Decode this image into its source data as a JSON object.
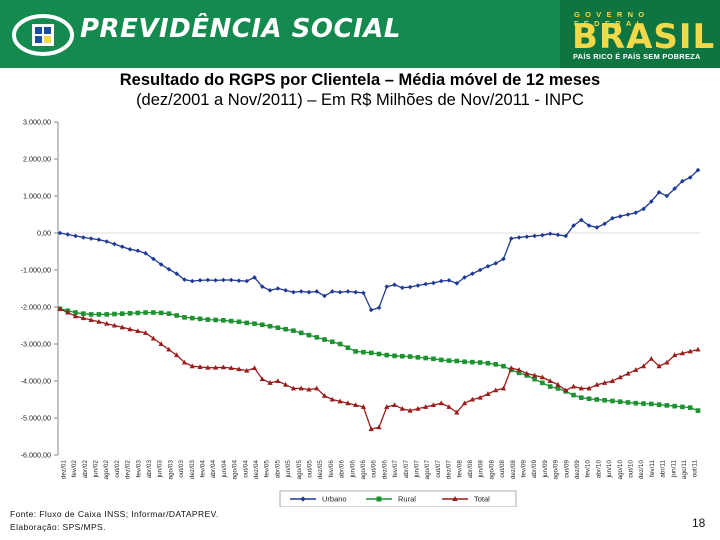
{
  "header": {
    "brand": "PREVIDÊNCIA SOCIAL",
    "gov_top": "GOVERNO FEDERAL",
    "gov_brasil": "BRASIL",
    "gov_slogan": "PAÍS RICO É PAÍS SEM POBREZA",
    "colors": {
      "header_green": "#148a4e",
      "gold": "#f3d94a"
    }
  },
  "title_line1": "Resultado do RGPS por Clientela – Média móvel de 12 meses",
  "title_line2": "(dez/2001 a Nov/2011) – Em R$ Milhões de Nov/2011 - INPC",
  "source_line1": "Fonte: Fluxo de Caixa INSS; Informar/DATAPREV.",
  "source_line2": "Elaboração: SPS/MPS.",
  "page_number": "18",
  "chart_data": {
    "type": "line",
    "title": "Resultado do RGPS por Clientela – Média móvel de 12 meses",
    "xlabel": "",
    "ylabel": "",
    "ylim": [
      -6000,
      3000
    ],
    "yticks": [
      3000,
      2000,
      1000,
      0,
      -1000,
      -2000,
      -3000,
      -4000,
      -5000,
      -6000
    ],
    "ytick_labels": [
      "3.000,00",
      "2.000,00",
      "1.000,00",
      "0,00",
      "-1.000,00",
      "-2.000,00",
      "-3.000,00",
      "-4.000,00",
      "-5.000,00",
      "-6.000,00"
    ],
    "grid": false,
    "legend_position": "bottom",
    "x_tick_labels": [
      "dez/01",
      "fev/02",
      "abr/02",
      "jun/02",
      "ago/02",
      "out/02",
      "dez/02",
      "fev/03",
      "abr/03",
      "jun/03",
      "ago/03",
      "out/03",
      "dez/03",
      "fev/04",
      "abr/04",
      "jun/04",
      "ago/04",
      "out/04",
      "dez/04",
      "fev/05",
      "abr/05",
      "jun/05",
      "ago/05",
      "out/05",
      "dez/05",
      "fev/06",
      "abr/06",
      "jun/06",
      "ago/06",
      "out/06",
      "dez/06",
      "fev/07",
      "abr/07",
      "jun/07",
      "ago/07",
      "out/07",
      "dez/07",
      "fev/08",
      "abr/08",
      "jun/08",
      "ago/08",
      "out/08",
      "dez/08",
      "fev/09",
      "abr/09",
      "jun/09",
      "ago/09",
      "out/09",
      "dez/09",
      "fev/10",
      "abr/10",
      "jun/10",
      "ago/10",
      "out/10",
      "dez/10",
      "fev/11",
      "abr/11",
      "jun/11",
      "ago/11",
      "out/11"
    ],
    "series": [
      {
        "name": "Urbano",
        "color": "#1f3a93",
        "marker": "diamond",
        "values": [
          0,
          -40,
          -80,
          -120,
          -150,
          -180,
          -230,
          -300,
          -370,
          -440,
          -480,
          -550,
          -700,
          -850,
          -980,
          -1100,
          -1260,
          -1300,
          -1280,
          -1270,
          -1280,
          -1270,
          -1270,
          -1290,
          -1300,
          -1200,
          -1450,
          -1550,
          -1500,
          -1550,
          -1600,
          -1580,
          -1600,
          -1580,
          -1700,
          -1580,
          -1600,
          -1580,
          -1600,
          -1620,
          -2080,
          -2020,
          -1450,
          -1400,
          -1480,
          -1460,
          -1420,
          -1380,
          -1350,
          -1300,
          -1280,
          -1360,
          -1200,
          -1100,
          -1000,
          -900,
          -820,
          -700,
          -150,
          -120,
          -100,
          -80,
          -60,
          -20,
          -50,
          -80,
          200,
          350,
          200,
          150,
          250,
          400,
          450,
          500,
          550,
          650,
          850,
          1100,
          1000,
          1200,
          1400,
          1500,
          1700
        ]
      },
      {
        "name": "Rural",
        "color": "#1e9130",
        "marker": "square",
        "values": [
          -2050,
          -2100,
          -2150,
          -2180,
          -2200,
          -2200,
          -2200,
          -2190,
          -2180,
          -2170,
          -2160,
          -2150,
          -2150,
          -2160,
          -2180,
          -2230,
          -2280,
          -2300,
          -2320,
          -2340,
          -2350,
          -2360,
          -2380,
          -2400,
          -2430,
          -2450,
          -2480,
          -2520,
          -2560,
          -2600,
          -2640,
          -2700,
          -2760,
          -2820,
          -2880,
          -2940,
          -3000,
          -3100,
          -3200,
          -3220,
          -3240,
          -3270,
          -3300,
          -3320,
          -3330,
          -3340,
          -3360,
          -3380,
          -3400,
          -3430,
          -3450,
          -3460,
          -3480,
          -3490,
          -3500,
          -3520,
          -3550,
          -3600,
          -3700,
          -3780,
          -3850,
          -3950,
          -4050,
          -4150,
          -4200,
          -4280,
          -4380,
          -4450,
          -4480,
          -4500,
          -4520,
          -4540,
          -4560,
          -4580,
          -4600,
          -4610,
          -4620,
          -4640,
          -4660,
          -4680,
          -4700,
          -4720,
          -4800
        ]
      },
      {
        "name": "Total",
        "color": "#9b1c1c",
        "marker": "triangle",
        "values": [
          -2050,
          -2150,
          -2250,
          -2300,
          -2350,
          -2400,
          -2450,
          -2500,
          -2550,
          -2600,
          -2650,
          -2700,
          -2850,
          -3000,
          -3150,
          -3300,
          -3500,
          -3600,
          -3620,
          -3640,
          -3640,
          -3630,
          -3650,
          -3680,
          -3720,
          -3650,
          -3950,
          -4050,
          -4000,
          -4100,
          -4200,
          -4200,
          -4230,
          -4200,
          -4400,
          -4500,
          -4550,
          -4600,
          -4650,
          -4700,
          -5300,
          -5250,
          -4700,
          -4650,
          -4750,
          -4800,
          -4750,
          -4700,
          -4650,
          -4600,
          -4700,
          -4850,
          -4600,
          -4500,
          -4450,
          -4350,
          -4250,
          -4200,
          -3650,
          -3700,
          -3800,
          -3850,
          -3900,
          -4000,
          -4100,
          -4250,
          -4150,
          -4200,
          -4200,
          -4100,
          -4050,
          -4000,
          -3900,
          -3800,
          -3700,
          -3600,
          -3400,
          -3600,
          -3500,
          -3300,
          -3250,
          -3200,
          -3150
        ]
      }
    ]
  }
}
